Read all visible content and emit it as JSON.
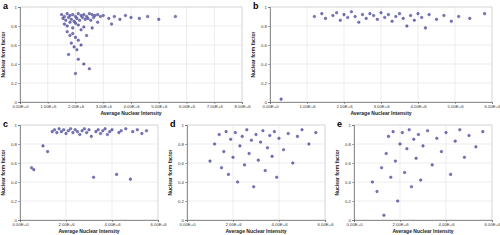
{
  "chart_data": [
    {
      "type": "scatter",
      "title": "a",
      "x_label": "Average Nuclear Intensity",
      "y_label": "Nuclear form factor",
      "color": "#4b4ba8",
      "marker": "circle",
      "grid": true,
      "xlim": [
        0,
        8000000.0
      ],
      "ylim": [
        0,
        1
      ],
      "xticks": [
        {
          "value": 0,
          "label": "0.00E+0"
        },
        {
          "value": 1000000.0,
          "label": "1.00E+6"
        },
        {
          "value": 2000000.0,
          "label": "2.00E+6"
        },
        {
          "value": 3000000.0,
          "label": "3.00E+6"
        },
        {
          "value": 4000000.0,
          "label": "4.00E+6"
        },
        {
          "value": 5000000.0,
          "label": "5.00E+6"
        },
        {
          "value": 6000000.0,
          "label": "6.00E+6"
        },
        {
          "value": 7000000.0,
          "label": "7.00E+6"
        },
        {
          "value": 8000000.0,
          "label": "8.00E+6"
        }
      ],
      "yticks": [
        0,
        0.2,
        0.4,
        0.6,
        0.8,
        1
      ],
      "x": [
        1500000.0,
        1600000.0,
        1700000.0,
        1800000.0,
        1900000.0,
        2000000.0,
        2100000.0,
        2200000.0,
        2300000.0,
        2400000.0,
        2500000.0,
        2600000.0,
        2700000.0,
        2800000.0,
        2900000.0,
        3000000.0,
        1550000.0,
        1650000.0,
        1750000.0,
        1850000.0,
        1950000.0,
        2050000.0,
        2150000.0,
        2250000.0,
        2350000.0,
        2450000.0,
        2550000.0,
        2650000.0,
        1600000.0,
        1700000.0,
        1800000.0,
        1900000.0,
        2000000.0,
        2100000.0,
        2200000.0,
        2300000.0,
        1700000.0,
        1800000.0,
        1900000.0,
        2000000.0,
        2100000.0,
        1850000.0,
        1950000.0,
        2050000.0,
        2200000.0,
        2400000.0,
        2600000.0,
        1750000.0,
        2100000.0,
        2300000.0,
        2500000.0,
        2000000.0,
        3200000.0,
        3400000.0,
        3600000.0,
        3800000.0,
        4000000.0,
        4300000.0,
        4600000.0,
        5000000.0,
        5600000.0,
        3300000.0,
        2800000.0
      ],
      "values": [
        0.92,
        0.9,
        0.93,
        0.91,
        0.92,
        0.9,
        0.93,
        0.91,
        0.92,
        0.9,
        0.93,
        0.92,
        0.91,
        0.92,
        0.9,
        0.91,
        0.88,
        0.86,
        0.89,
        0.87,
        0.85,
        0.88,
        0.86,
        0.89,
        0.87,
        0.88,
        0.86,
        0.89,
        0.82,
        0.8,
        0.84,
        0.78,
        0.83,
        0.81,
        0.76,
        0.79,
        0.74,
        0.7,
        0.72,
        0.68,
        0.65,
        0.62,
        0.58,
        0.55,
        0.6,
        0.7,
        0.78,
        0.5,
        0.45,
        0.4,
        0.35,
        0.3,
        0.88,
        0.9,
        0.87,
        0.91,
        0.89,
        0.88,
        0.9,
        0.87,
        0.9,
        0.82,
        0.84
      ]
    },
    {
      "type": "scatter",
      "title": "b",
      "x_label": "Average Nuclear Intensity",
      "y_label": "Nuclear form factor",
      "color": "#4b4ba8",
      "marker": "circle",
      "grid": true,
      "xlim": [
        0,
        6000000.0
      ],
      "ylim": [
        0,
        1
      ],
      "xticks": [
        {
          "value": 0,
          "label": "0.00E+0"
        },
        {
          "value": 1000000.0,
          "label": "1.00E+6"
        },
        {
          "value": 2000000.0,
          "label": "2.00E+6"
        },
        {
          "value": 3000000.0,
          "label": "3.00E+6"
        },
        {
          "value": 4000000.0,
          "label": "4.00E+6"
        },
        {
          "value": 5000000.0,
          "label": "5.00E+6"
        },
        {
          "value": 6000000.0,
          "label": "6.00E+6"
        }
      ],
      "yticks": [
        0,
        0.2,
        0.4,
        0.6,
        0.8,
        1
      ],
      "x": [
        1200000.0,
        1400000.0,
        1500000.0,
        1700000.0,
        1800000.0,
        1900000.0,
        2000000.0,
        2100000.0,
        2200000.0,
        2300000.0,
        2400000.0,
        2500000.0,
        2600000.0,
        2700000.0,
        2800000.0,
        2900000.0,
        3000000.0,
        3100000.0,
        3200000.0,
        3300000.0,
        3400000.0,
        3500000.0,
        3600000.0,
        3700000.0,
        3800000.0,
        3900000.0,
        4000000.0,
        4100000.0,
        4200000.0,
        4300000.0,
        4500000.0,
        4700000.0,
        4900000.0,
        5100000.0,
        5400000.0,
        5800000.0,
        300000.0
      ],
      "values": [
        0.9,
        0.93,
        0.88,
        0.91,
        0.94,
        0.86,
        0.92,
        0.89,
        0.95,
        0.9,
        0.84,
        0.92,
        0.88,
        0.93,
        0.91,
        0.87,
        0.94,
        0.89,
        0.92,
        0.85,
        0.9,
        0.93,
        0.88,
        0.8,
        0.91,
        0.86,
        0.93,
        0.89,
        0.78,
        0.92,
        0.87,
        0.91,
        0.85,
        0.9,
        0.88,
        0.93,
        0.03
      ]
    },
    {
      "type": "scatter",
      "title": "c",
      "x_label": "Average Nuclear Intensity",
      "y_label": "Nuclear form factor",
      "color": "#4b4ba8",
      "marker": "circle",
      "grid": true,
      "xlim": [
        0,
        6000000.0
      ],
      "ylim": [
        0,
        1
      ],
      "xticks": [
        {
          "value": 0,
          "label": "0.00E+0"
        },
        {
          "value": 2000000.0,
          "label": "2.00E+6"
        },
        {
          "value": 4000000.0,
          "label": "4.00E+6"
        },
        {
          "value": 6000000.0,
          "label": "6.00E+6"
        }
      ],
      "yticks": [
        0,
        0.2,
        0.4,
        0.6,
        0.8,
        1
      ],
      "x": [
        500000.0,
        600000.0,
        1000000.0,
        1200000.0,
        1400000.0,
        1500000.0,
        1600000.0,
        1700000.0,
        1800000.0,
        1900000.0,
        2000000.0,
        2100000.0,
        2200000.0,
        2300000.0,
        2400000.0,
        2500000.0,
        2600000.0,
        2700000.0,
        2800000.0,
        2900000.0,
        3000000.0,
        3100000.0,
        3200000.0,
        3300000.0,
        3400000.0,
        3500000.0,
        3600000.0,
        3700000.0,
        3800000.0,
        3900000.0,
        4000000.0,
        4200000.0,
        4300000.0,
        4400000.0,
        4600000.0,
        4800000.0,
        4900000.0,
        5100000.0,
        5300000.0,
        5500000.0
      ],
      "values": [
        0.55,
        0.53,
        0.78,
        0.72,
        0.93,
        0.95,
        0.92,
        0.96,
        0.93,
        0.95,
        0.91,
        0.94,
        0.96,
        0.92,
        0.95,
        0.93,
        0.9,
        0.94,
        0.96,
        0.92,
        0.95,
        0.88,
        0.45,
        0.93,
        0.95,
        0.91,
        0.94,
        0.96,
        0.9,
        0.93,
        0.95,
        0.48,
        0.92,
        0.94,
        0.96,
        0.43,
        0.93,
        0.95,
        0.91,
        0.94
      ]
    },
    {
      "type": "scatter",
      "title": "d",
      "x_label": "Average Nuclear Intensity",
      "y_label": "Nuclear form factor",
      "color": "#4b4ba8",
      "marker": "circle",
      "grid": true,
      "xlim": [
        0,
        6000000.0
      ],
      "ylim": [
        0,
        1
      ],
      "xticks": [
        {
          "value": 0,
          "label": "0.00E+0"
        },
        {
          "value": 2000000.0,
          "label": "2.00E+6"
        },
        {
          "value": 4000000.0,
          "label": "4.00E+6"
        },
        {
          "value": 6000000.0,
          "label": "6.00E+6"
        }
      ],
      "yticks": [
        0,
        0.2,
        0.4,
        0.6,
        0.8,
        1
      ],
      "x": [
        1000000.0,
        1200000.0,
        1400000.0,
        1500000.0,
        1600000.0,
        1700000.0,
        1800000.0,
        1900000.0,
        2000000.0,
        2100000.0,
        2200000.0,
        2300000.0,
        2400000.0,
        2500000.0,
        2600000.0,
        2700000.0,
        2800000.0,
        2900000.0,
        3000000.0,
        3100000.0,
        3200000.0,
        3300000.0,
        3400000.0,
        3500000.0,
        3600000.0,
        3700000.0,
        3800000.0,
        3900000.0,
        4000000.0,
        4200000.0,
        4400000.0,
        4600000.0,
        4800000.0,
        5000000.0,
        5300000.0,
        5600000.0
      ],
      "values": [
        0.62,
        0.8,
        0.9,
        0.55,
        0.72,
        0.93,
        0.48,
        0.85,
        0.66,
        0.92,
        0.4,
        0.78,
        0.88,
        0.58,
        0.95,
        0.7,
        0.84,
        0.35,
        0.9,
        0.63,
        0.82,
        0.94,
        0.52,
        0.76,
        0.89,
        0.67,
        0.93,
        0.45,
        0.86,
        0.74,
        0.91,
        0.6,
        0.88,
        0.95,
        0.8,
        0.92
      ]
    },
    {
      "type": "scatter",
      "title": "e",
      "x_label": "Average Nuclear Intensity",
      "y_label": "Nuclear form factor",
      "color": "#4b4ba8",
      "marker": "circle",
      "grid": true,
      "xlim": [
        0,
        6000000.0
      ],
      "ylim": [
        0,
        1
      ],
      "xticks": [
        {
          "value": 0,
          "label": "0.00E+0"
        },
        {
          "value": 2000000.0,
          "label": "2.00E+6"
        },
        {
          "value": 4000000.0,
          "label": "4.00E+6"
        },
        {
          "value": 6000000.0,
          "label": "6.00E+6"
        }
      ],
      "yticks": [
        0,
        0.2,
        0.4,
        0.6,
        0.8,
        1
      ],
      "x": [
        800000.0,
        1000000.0,
        1200000.0,
        1300000.0,
        1400000.0,
        1500000.0,
        1600000.0,
        1700000.0,
        1800000.0,
        1900000.0,
        2000000.0,
        2100000.0,
        2200000.0,
        2300000.0,
        2400000.0,
        2500000.0,
        2600000.0,
        2700000.0,
        2800000.0,
        2900000.0,
        3000000.0,
        3200000.0,
        3400000.0,
        3600000.0,
        3800000.0,
        4000000.0,
        4200000.0,
        4400000.0,
        4600000.0,
        4800000.0,
        5000000.0,
        5300000.0,
        5600000.0
      ],
      "values": [
        0.4,
        0.3,
        0.55,
        0.05,
        0.7,
        0.88,
        0.45,
        0.93,
        0.62,
        0.2,
        0.8,
        0.92,
        0.5,
        0.75,
        0.95,
        0.35,
        0.85,
        0.65,
        0.9,
        0.42,
        0.78,
        0.94,
        0.58,
        0.86,
        0.72,
        0.92,
        0.48,
        0.83,
        0.95,
        0.66,
        0.89,
        0.77,
        0.93
      ]
    }
  ]
}
